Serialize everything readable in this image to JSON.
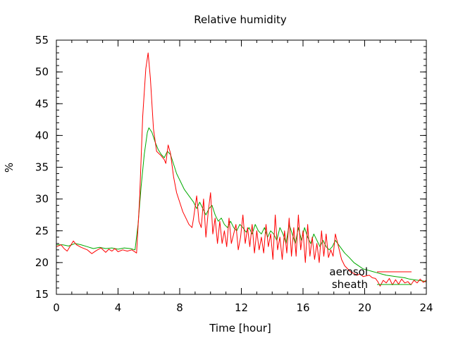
{
  "chart_data": {
    "type": "line",
    "title": "Relative humidity",
    "xlabel": "Time [hour]",
    "ylabel": "%",
    "xlim": [
      0,
      24
    ],
    "ylim": [
      15,
      55
    ],
    "xticks": [
      0,
      4,
      8,
      12,
      16,
      20,
      24
    ],
    "yticks": [
      15,
      20,
      25,
      30,
      35,
      40,
      45,
      50,
      55
    ],
    "x_minor_step": 1,
    "y_minor_step": 1,
    "grid": false,
    "legend_position": "bottom-right",
    "series": [
      {
        "name": "aerosol",
        "color": "#ff0000",
        "x": [
          0,
          0.3,
          0.5,
          0.7,
          0.9,
          1.1,
          1.3,
          1.6,
          2.0,
          2.3,
          2.6,
          2.9,
          3.2,
          3.4,
          3.6,
          3.8,
          4.0,
          4.3,
          4.6,
          4.9,
          5.2,
          5.4,
          5.6,
          5.8,
          5.95,
          6.1,
          6.3,
          6.5,
          6.8,
          7.0,
          7.1,
          7.25,
          7.4,
          7.6,
          7.8,
          8.0,
          8.2,
          8.4,
          8.6,
          8.8,
          8.9,
          9.1,
          9.25,
          9.4,
          9.55,
          9.7,
          9.85,
          10.0,
          10.15,
          10.3,
          10.45,
          10.6,
          10.75,
          10.9,
          11.05,
          11.2,
          11.35,
          11.5,
          11.65,
          11.8,
          11.95,
          12.1,
          12.25,
          12.4,
          12.55,
          12.7,
          12.85,
          13.0,
          13.15,
          13.3,
          13.45,
          13.6,
          13.75,
          13.9,
          14.05,
          14.2,
          14.35,
          14.5,
          14.65,
          14.8,
          14.95,
          15.1,
          15.25,
          15.4,
          15.55,
          15.7,
          15.85,
          16.0,
          16.15,
          16.3,
          16.45,
          16.6,
          16.75,
          16.9,
          17.05,
          17.2,
          17.35,
          17.5,
          17.65,
          17.8,
          17.95,
          18.1,
          18.3,
          18.5,
          18.7,
          18.9,
          19.1,
          19.3,
          19.5,
          19.7,
          19.9,
          20.1,
          20.3,
          20.5,
          20.7,
          20.85,
          21.0,
          21.2,
          21.4,
          21.6,
          21.8,
          22.0,
          22.2,
          22.4,
          22.6,
          22.8,
          23.0,
          23.2,
          23.4,
          23.6,
          23.8,
          24.0
        ],
        "y": [
          22.5,
          22.8,
          22.2,
          21.8,
          22.6,
          23.4,
          22.8,
          22.4,
          22.0,
          21.4,
          21.9,
          22.3,
          21.6,
          22.1,
          21.8,
          22.2,
          21.7,
          22.0,
          21.8,
          22.0,
          21.5,
          30.0,
          43.0,
          50.5,
          53.0,
          49.0,
          41.0,
          37.5,
          36.8,
          36.2,
          35.6,
          38.5,
          37.2,
          33.5,
          31.0,
          29.5,
          28.0,
          27.0,
          26.0,
          25.5,
          27.0,
          30.5,
          26.5,
          25.5,
          30.0,
          24.0,
          28.0,
          31.0,
          24.5,
          27.0,
          23.0,
          26.5,
          23.0,
          25.0,
          22.5,
          27.0,
          23.0,
          24.5,
          26.0,
          22.0,
          24.0,
          27.5,
          23.0,
          25.5,
          22.5,
          26.0,
          21.5,
          25.0,
          22.0,
          24.0,
          21.5,
          26.0,
          22.5,
          24.5,
          20.5,
          27.5,
          22.0,
          24.0,
          20.5,
          25.0,
          21.5,
          27.0,
          21.0,
          25.5,
          21.0,
          27.5,
          22.0,
          25.0,
          20.0,
          26.0,
          21.0,
          24.0,
          20.5,
          23.0,
          20.0,
          25.0,
          21.0,
          24.5,
          20.8,
          22.0,
          21.0,
          24.5,
          22.5,
          20.5,
          19.5,
          19.0,
          18.5,
          18.3,
          18.0,
          18.2,
          17.8,
          17.9,
          18.0,
          17.6,
          17.5,
          17.0,
          16.3,
          17.2,
          16.8,
          17.5,
          16.5,
          17.3,
          16.6,
          17.4,
          16.8,
          17.0,
          16.5,
          17.2,
          16.8,
          17.4,
          16.9,
          17.2
        ]
      },
      {
        "name": "sheath",
        "color": "#00aa00",
        "x": [
          0,
          0.4,
          0.8,
          1.2,
          1.6,
          2.0,
          2.4,
          2.8,
          3.2,
          3.6,
          4.0,
          4.4,
          4.8,
          5.1,
          5.3,
          5.5,
          5.7,
          5.9,
          6.0,
          6.2,
          6.4,
          6.6,
          6.8,
          7.0,
          7.2,
          7.4,
          7.6,
          7.8,
          8.0,
          8.3,
          8.6,
          8.9,
          9.1,
          9.3,
          9.5,
          9.7,
          9.9,
          10.1,
          10.3,
          10.5,
          10.7,
          10.9,
          11.1,
          11.3,
          11.5,
          11.7,
          11.9,
          12.1,
          12.3,
          12.5,
          12.7,
          12.9,
          13.1,
          13.3,
          13.5,
          13.7,
          13.9,
          14.1,
          14.3,
          14.5,
          14.7,
          14.9,
          15.1,
          15.3,
          15.5,
          15.7,
          15.9,
          16.1,
          16.3,
          16.5,
          16.7,
          16.9,
          17.1,
          17.3,
          17.5,
          17.7,
          17.9,
          18.1,
          18.4,
          18.7,
          19.0,
          19.3,
          19.6,
          19.9,
          20.2,
          20.5,
          20.8,
          21.1,
          21.4,
          21.7,
          22.0,
          22.3,
          22.6,
          22.9,
          23.2,
          23.5,
          23.8,
          24.0
        ],
        "y": [
          22.8,
          22.8,
          22.6,
          23.0,
          22.8,
          22.5,
          22.2,
          22.4,
          22.2,
          22.3,
          22.1,
          22.3,
          22.2,
          22.0,
          26.0,
          32.0,
          37.0,
          40.5,
          41.2,
          40.5,
          39.0,
          37.8,
          37.0,
          36.5,
          37.5,
          37.0,
          35.5,
          34.0,
          33.0,
          31.5,
          30.5,
          29.5,
          28.5,
          29.5,
          28.5,
          27.5,
          28.5,
          29.0,
          27.5,
          26.5,
          27.0,
          26.0,
          25.5,
          26.5,
          25.5,
          25.0,
          26.0,
          25.5,
          24.8,
          25.5,
          24.5,
          26.0,
          25.0,
          24.5,
          25.5,
          24.0,
          25.0,
          24.5,
          23.5,
          25.5,
          24.5,
          23.0,
          26.0,
          24.5,
          23.0,
          25.5,
          23.5,
          25.5,
          24.0,
          23.0,
          24.5,
          23.5,
          22.5,
          23.5,
          22.5,
          22.0,
          22.5,
          23.5,
          22.5,
          21.5,
          20.8,
          20.0,
          19.5,
          19.0,
          18.8,
          18.6,
          18.4,
          18.2,
          18.0,
          17.9,
          17.8,
          17.7,
          17.6,
          17.4,
          17.3,
          17.2,
          17.1,
          17.0
        ]
      }
    ]
  }
}
